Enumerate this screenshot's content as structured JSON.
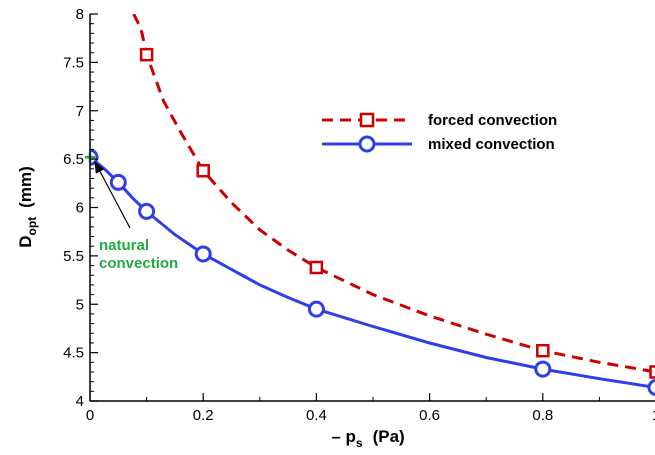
{
  "chart_data": {
    "type": "line",
    "xlabel": {
      "prefix": "– p",
      "sub": "s",
      "unit": "(Pa)"
    },
    "ylabel": {
      "main": "D",
      "sub": "opt",
      "unit": "(mm)"
    },
    "xlim": [
      0,
      1.0
    ],
    "ylim": [
      4,
      8
    ],
    "x_ticks": [
      {
        "value": 0,
        "label": "0"
      },
      {
        "value": 0.2,
        "label": "0.2"
      },
      {
        "value": 0.4,
        "label": "0.4"
      },
      {
        "value": 0.6,
        "label": "0.6"
      },
      {
        "value": 0.8,
        "label": "0.8"
      },
      {
        "value": 1.0,
        "label": "1"
      }
    ],
    "y_ticks": [
      {
        "value": 4,
        "label": "4"
      },
      {
        "value": 4.5,
        "label": "4.5"
      },
      {
        "value": 5,
        "label": "5"
      },
      {
        "value": 5.5,
        "label": "5.5"
      },
      {
        "value": 6,
        "label": "6"
      },
      {
        "value": 6.5,
        "label": "6.5"
      },
      {
        "value": 7,
        "label": "7"
      },
      {
        "value": 7.5,
        "label": "7.5"
      },
      {
        "value": 8,
        "label": "8"
      }
    ],
    "grid": false,
    "legend_position": "top-right",
    "series": [
      {
        "name": "forced convection",
        "color": "#cc0000",
        "line_style": "dashed",
        "marker": "square",
        "markers": [
          {
            "x": 0.1,
            "y": 7.58
          },
          {
            "x": 0.2,
            "y": 6.38
          },
          {
            "x": 0.4,
            "y": 5.38
          },
          {
            "x": 0.8,
            "y": 4.52
          },
          {
            "x": 1.0,
            "y": 4.3
          }
        ],
        "curve": [
          {
            "x": 0.077,
            "y": 8.0
          },
          {
            "x": 0.09,
            "y": 7.85
          },
          {
            "x": 0.1,
            "y": 7.58
          },
          {
            "x": 0.13,
            "y": 7.1
          },
          {
            "x": 0.16,
            "y": 6.78
          },
          {
            "x": 0.2,
            "y": 6.38
          },
          {
            "x": 0.25,
            "y": 6.05
          },
          {
            "x": 0.3,
            "y": 5.77
          },
          {
            "x": 0.35,
            "y": 5.56
          },
          {
            "x": 0.4,
            "y": 5.38
          },
          {
            "x": 0.5,
            "y": 5.1
          },
          {
            "x": 0.6,
            "y": 4.88
          },
          {
            "x": 0.7,
            "y": 4.69
          },
          {
            "x": 0.8,
            "y": 4.52
          },
          {
            "x": 0.9,
            "y": 4.4
          },
          {
            "x": 1.0,
            "y": 4.3
          }
        ]
      },
      {
        "name": "mixed convection",
        "color": "#2f3fe8",
        "line_style": "solid",
        "marker": "circle",
        "markers": [
          {
            "x": 0.0,
            "y": 6.52
          },
          {
            "x": 0.05,
            "y": 6.26
          },
          {
            "x": 0.1,
            "y": 5.96
          },
          {
            "x": 0.2,
            "y": 5.52
          },
          {
            "x": 0.4,
            "y": 4.95
          },
          {
            "x": 0.8,
            "y": 4.33
          },
          {
            "x": 1.0,
            "y": 4.14
          }
        ],
        "curve": [
          {
            "x": 0.0,
            "y": 6.52
          },
          {
            "x": 0.025,
            "y": 6.4
          },
          {
            "x": 0.05,
            "y": 6.26
          },
          {
            "x": 0.075,
            "y": 6.1
          },
          {
            "x": 0.1,
            "y": 5.96
          },
          {
            "x": 0.15,
            "y": 5.72
          },
          {
            "x": 0.2,
            "y": 5.52
          },
          {
            "x": 0.25,
            "y": 5.36
          },
          {
            "x": 0.3,
            "y": 5.2
          },
          {
            "x": 0.35,
            "y": 5.07
          },
          {
            "x": 0.4,
            "y": 4.95
          },
          {
            "x": 0.5,
            "y": 4.77
          },
          {
            "x": 0.6,
            "y": 4.6
          },
          {
            "x": 0.7,
            "y": 4.45
          },
          {
            "x": 0.8,
            "y": 4.33
          },
          {
            "x": 0.9,
            "y": 4.23
          },
          {
            "x": 1.0,
            "y": 4.14
          }
        ]
      }
    ],
    "annotations": [
      {
        "lines": [
          "natural",
          "convection"
        ],
        "color": "#22aa44",
        "points_to": {
          "x": 0.0,
          "y": 6.52
        }
      }
    ]
  }
}
